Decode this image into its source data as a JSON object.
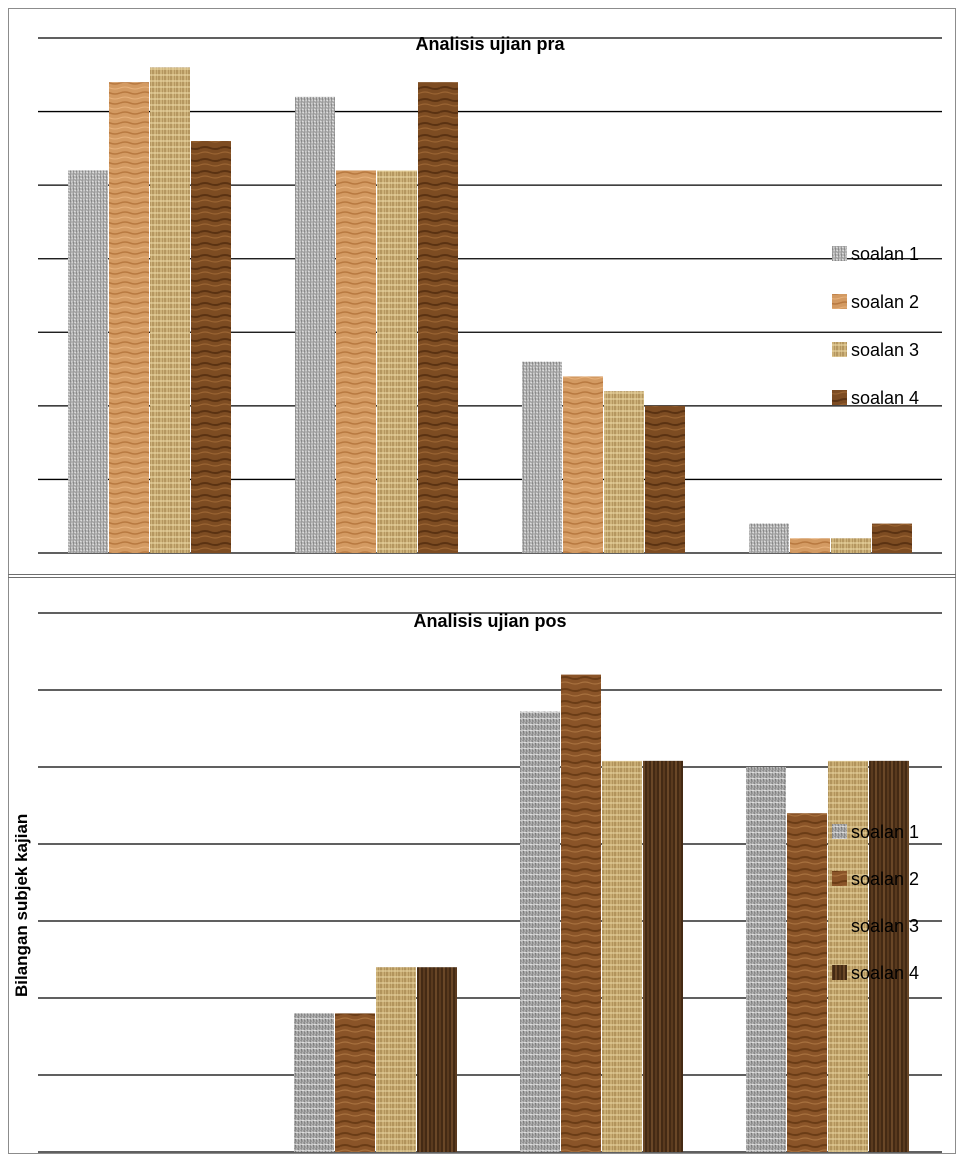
{
  "chart_data": [
    {
      "type": "bar",
      "title": "Analisis ujian pra",
      "categories": [
        "",
        "",
        "",
        ""
      ],
      "series": [
        {
          "name": "soalan 1",
          "values": [
            26,
            31,
            13,
            2
          ]
        },
        {
          "name": "soalan 2",
          "values": [
            32,
            26,
            12,
            1
          ]
        },
        {
          "name": "soalan 3",
          "values": [
            33,
            26,
            11,
            1
          ]
        },
        {
          "name": "soalan 4",
          "values": [
            28,
            32,
            10,
            2
          ]
        }
      ],
      "ylim": [
        0,
        35
      ],
      "grid": true,
      "legend": "right",
      "ylabel": ""
    },
    {
      "type": "bar",
      "title": "Analisis ujian pos",
      "categories": [
        "",
        "",
        "",
        ""
      ],
      "series": [
        {
          "name": "soalan 1",
          "values": [
            0,
            4.5,
            14.3,
            12.5
          ]
        },
        {
          "name": "soalan 2",
          "values": [
            0,
            4.5,
            15.5,
            11
          ]
        },
        {
          "name": "soalan 3",
          "values": [
            0,
            6,
            12.7,
            12.7
          ]
        },
        {
          "name": "soalan 4",
          "values": [
            0,
            6,
            12.7,
            12.7
          ]
        }
      ],
      "ylim": [
        0,
        17.5
      ],
      "grid": true,
      "legend": "right",
      "ylabel": "Bilangan  subjek kajian"
    }
  ],
  "colors": {
    "soalan_1": "#a9a9a9",
    "soalan_2": "#d0935a",
    "soalan_3": "#c8b07a",
    "soalan_4": "#7a4a22",
    "grid": "#000000",
    "frame": "#8c8c8c"
  }
}
